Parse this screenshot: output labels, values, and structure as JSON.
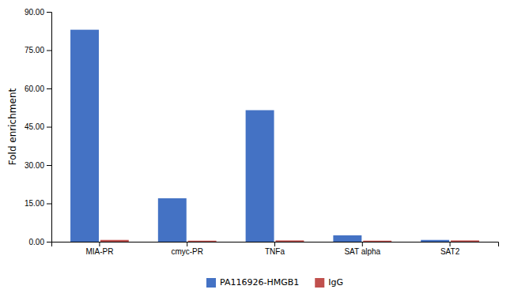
{
  "chart_data": {
    "type": "bar",
    "categories": [
      "MIA-PR",
      "cmyc-PR",
      "TNFa",
      "SAT alpha",
      "SAT2"
    ],
    "series": [
      {
        "name": "PA116926-HMGB1",
        "color": "#4472C4",
        "values": [
          83.0,
          17.0,
          51.5,
          2.5,
          0.7
        ]
      },
      {
        "name": "IgG",
        "color": "#C0504D",
        "values": [
          0.7,
          0.4,
          0.5,
          0.4,
          0.5
        ]
      }
    ],
    "ylabel": "Fold enrichment",
    "ylim": [
      0,
      90
    ],
    "yticks": [
      {
        "value": 0.0,
        "label": "0.00"
      },
      {
        "value": 15.0,
        "label": "15.00"
      },
      {
        "value": 30.0,
        "label": "30.00"
      },
      {
        "value": 45.0,
        "label": "45.00"
      },
      {
        "value": 60.0,
        "label": "60.00"
      },
      {
        "value": 75.0,
        "label": "75.00"
      },
      {
        "value": 90.0,
        "label": "90.00"
      }
    ],
    "grid": false,
    "legend": "bottom"
  }
}
